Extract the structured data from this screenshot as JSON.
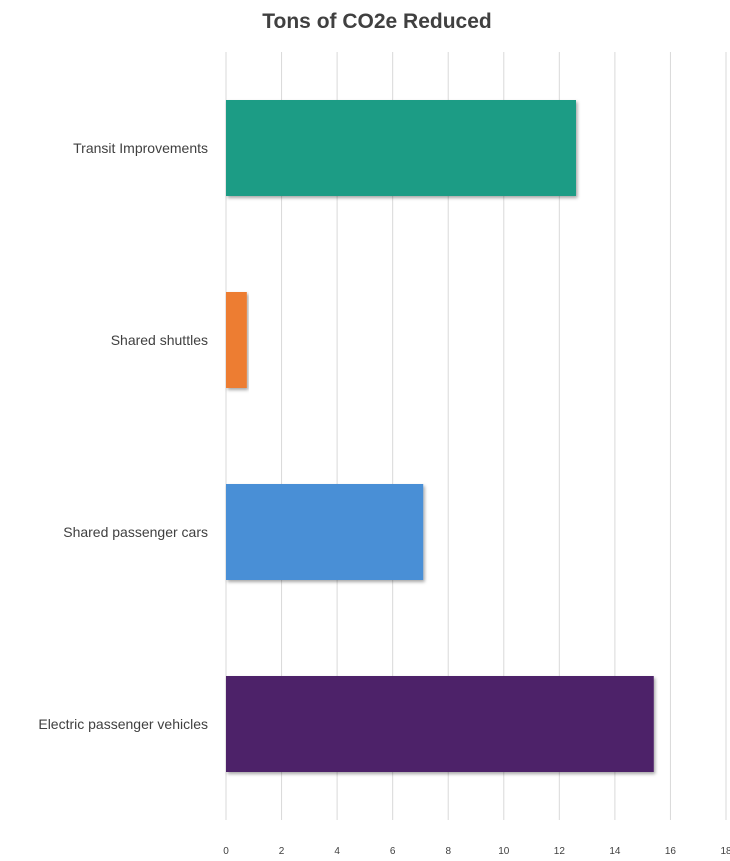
{
  "chart_data": {
    "type": "bar",
    "orientation": "horizontal",
    "title": "Tons of CO2e Reduced",
    "xlabel": "",
    "ylabel": "",
    "categories": [
      "Transit Improvements",
      "Shared shuttles",
      "Shared passenger cars",
      "Electric passenger vehicles"
    ],
    "values": [
      12.6,
      0.75,
      7.1,
      15.4
    ],
    "colors": [
      "#1f9c85",
      "#ed7d31",
      "#4a8fd6",
      "#4e2169"
    ],
    "xlim": [
      0,
      18
    ],
    "xticks": [
      0,
      2,
      4,
      6,
      8,
      10,
      12,
      14,
      16,
      18
    ],
    "grid": true,
    "legend": "none"
  }
}
